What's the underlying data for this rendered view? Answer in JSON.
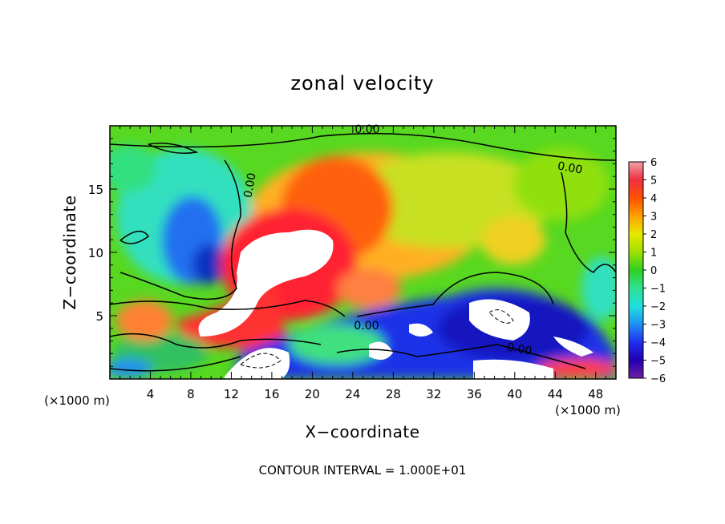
{
  "chart_data": {
    "type": "heatmap",
    "title": "zonal velocity",
    "xlabel": "X−coordinate",
    "ylabel": "Z−coordinate",
    "x_unit": "(×1000 m)",
    "y_unit": "(×1000 m)",
    "xlim": [
      0,
      50
    ],
    "ylim": [
      0,
      20
    ],
    "x_ticks": [
      4,
      8,
      12,
      16,
      20,
      24,
      28,
      32,
      36,
      40,
      44,
      48
    ],
    "y_ticks": [
      5,
      10,
      15
    ],
    "colorbar": {
      "min": -6,
      "max": 6,
      "ticks": [
        "6",
        "5",
        "4",
        "3",
        "2",
        "1",
        "0",
        "−1",
        "−2",
        "−3",
        "−4",
        "−5",
        "−6"
      ]
    },
    "contour_labels": [
      "0.00",
      "0.00",
      "0.00",
      "0.00",
      "0.00"
    ],
    "footer": "CONTOUR INTERVAL = 1.000E+01"
  }
}
